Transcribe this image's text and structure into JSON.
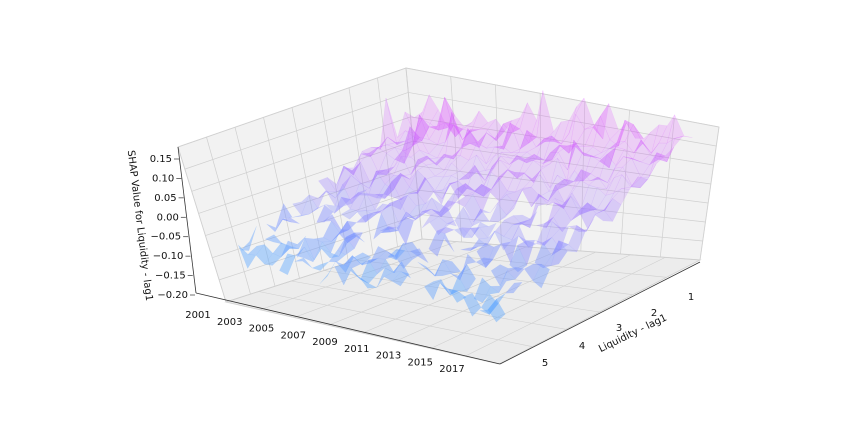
{
  "chart_data": {
    "type": "surface3d",
    "xlabel": "",
    "ylabel": "Liquidity - lag1",
    "zlabel": "SHAP Value for Liquidity - lag1",
    "x_ticks": [
      "2001",
      "2003",
      "2005",
      "2007",
      "2009",
      "2011",
      "2013",
      "2015",
      "2017"
    ],
    "y_ticks": [
      "1",
      "2",
      "3",
      "4",
      "5"
    ],
    "z_ticks": [
      "0.15",
      "0.10",
      "0.05",
      "0.00",
      "−0.05",
      "−0.10",
      "−0.15",
      "−0.20"
    ],
    "z_range": [
      -0.2,
      0.15
    ],
    "grid": true,
    "colors": {
      "low": "#5fa8ff",
      "high": "#d94cff",
      "pane_fill": "#f2f2f2",
      "grid": "#cfcfcf"
    },
    "surface_summary": {
      "near_liquidity_1": 0.07,
      "near_liquidity_5": -0.09,
      "max": 0.15,
      "min": -0.2
    }
  }
}
